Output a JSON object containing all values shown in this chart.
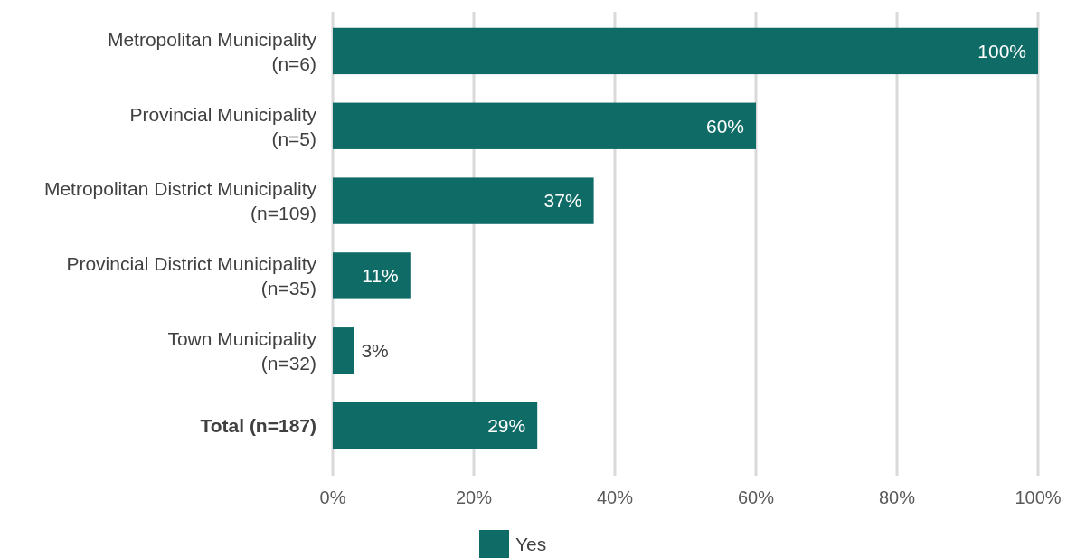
{
  "chart_data": {
    "type": "bar",
    "orientation": "horizontal",
    "categories": [
      "Metropolitan Municipality\n(n=6)",
      "Provincial Municipality\n(n=5)",
      "Metropolitan District Municipality\n(n=109)",
      "Provincial District Municipality\n(n=35)",
      "Town Municipality\n(n=32)",
      "Total (n=187)"
    ],
    "series": [
      {
        "name": "Yes",
        "color": "#0e6b66",
        "values": [
          100,
          60,
          37,
          11,
          3,
          29
        ]
      }
    ],
    "xlim": [
      0,
      100
    ],
    "xticks": [
      {
        "value": 0,
        "label": "0%"
      },
      {
        "value": 20,
        "label": "20%"
      },
      {
        "value": 40,
        "label": "40%"
      },
      {
        "value": 60,
        "label": "60%"
      },
      {
        "value": 80,
        "label": "80%"
      },
      {
        "value": 100,
        "label": "100%"
      }
    ],
    "value_labels": [
      "100%",
      "60%",
      "37%",
      "11%",
      "3%",
      "29%"
    ],
    "grid": "x",
    "legend": "bottom"
  }
}
